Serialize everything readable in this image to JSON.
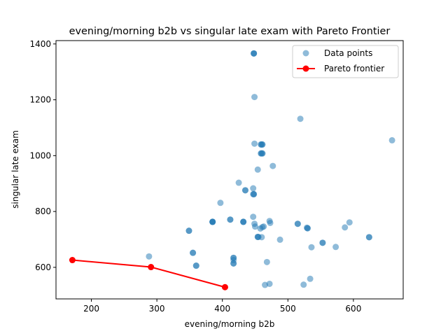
{
  "chart_data": {
    "type": "scatter",
    "title": "evening/morning b2b vs singular late exam with Pareto Frontier",
    "xlabel": "evening/morning b2b",
    "ylabel": "singular late exam",
    "xlim": [
      146,
      676
    ],
    "ylim": [
      487,
      1412
    ],
    "xticks": [
      200,
      300,
      400,
      500,
      600
    ],
    "yticks": [
      600,
      800,
      1000,
      1200,
      1400
    ],
    "grid": false,
    "legend_position": "top-right",
    "series": [
      {
        "name": "Data points",
        "kind": "scatter",
        "color": "#1f77b4",
        "opacity": 0.5,
        "points": [
          [
            448,
            1366
          ],
          [
            448,
            1366
          ],
          [
            448,
            1366
          ],
          [
            449,
            1210
          ],
          [
            519,
            1132
          ],
          [
            659,
            1055
          ],
          [
            449,
            1043
          ],
          [
            459,
            1040
          ],
          [
            459,
            1040
          ],
          [
            461,
            1040
          ],
          [
            461,
            1040
          ],
          [
            459,
            1008
          ],
          [
            459,
            1008
          ],
          [
            461,
            1008
          ],
          [
            461,
            1008
          ],
          [
            477,
            963
          ],
          [
            454,
            950
          ],
          [
            425,
            903
          ],
          [
            447,
            883
          ],
          [
            435,
            876
          ],
          [
            435,
            876
          ],
          [
            448,
            862
          ],
          [
            448,
            862
          ],
          [
            447,
            862
          ],
          [
            397,
            831
          ],
          [
            447,
            781
          ],
          [
            412,
            771
          ],
          [
            412,
            771
          ],
          [
            385,
            763
          ],
          [
            385,
            763
          ],
          [
            385,
            763
          ],
          [
            385,
            763
          ],
          [
            432,
            763
          ],
          [
            432,
            763
          ],
          [
            432,
            763
          ],
          [
            472,
            766
          ],
          [
            473,
            759
          ],
          [
            449,
            756
          ],
          [
            450,
            746
          ],
          [
            463,
            746
          ],
          [
            461,
            744
          ],
          [
            458,
            739
          ],
          [
            515,
            756
          ],
          [
            515,
            756
          ],
          [
            529,
            742
          ],
          [
            530,
            740
          ],
          [
            530,
            740
          ],
          [
            594,
            761
          ],
          [
            587,
            743
          ],
          [
            349,
            731
          ],
          [
            349,
            731
          ],
          [
            454,
            709
          ],
          [
            454,
            709
          ],
          [
            455,
            709
          ],
          [
            460,
            708
          ],
          [
            488,
            699
          ],
          [
            553,
            688
          ],
          [
            553,
            688
          ],
          [
            624,
            708
          ],
          [
            624,
            708
          ],
          [
            536,
            672
          ],
          [
            573,
            673
          ],
          [
            355,
            652
          ],
          [
            355,
            652
          ],
          [
            288,
            639
          ],
          [
            417,
            634
          ],
          [
            417,
            634
          ],
          [
            417,
            626
          ],
          [
            417,
            614
          ],
          [
            417,
            614
          ],
          [
            360,
            606
          ],
          [
            360,
            606
          ],
          [
            468,
            619
          ],
          [
            465,
            537
          ],
          [
            472,
            541
          ],
          [
            524,
            538
          ],
          [
            534,
            559
          ]
        ]
      },
      {
        "name": "Pareto frontier",
        "kind": "line",
        "color": "#ff0000",
        "points": [
          [
            171,
            626
          ],
          [
            291,
            601
          ],
          [
            404,
            529
          ]
        ]
      }
    ]
  }
}
